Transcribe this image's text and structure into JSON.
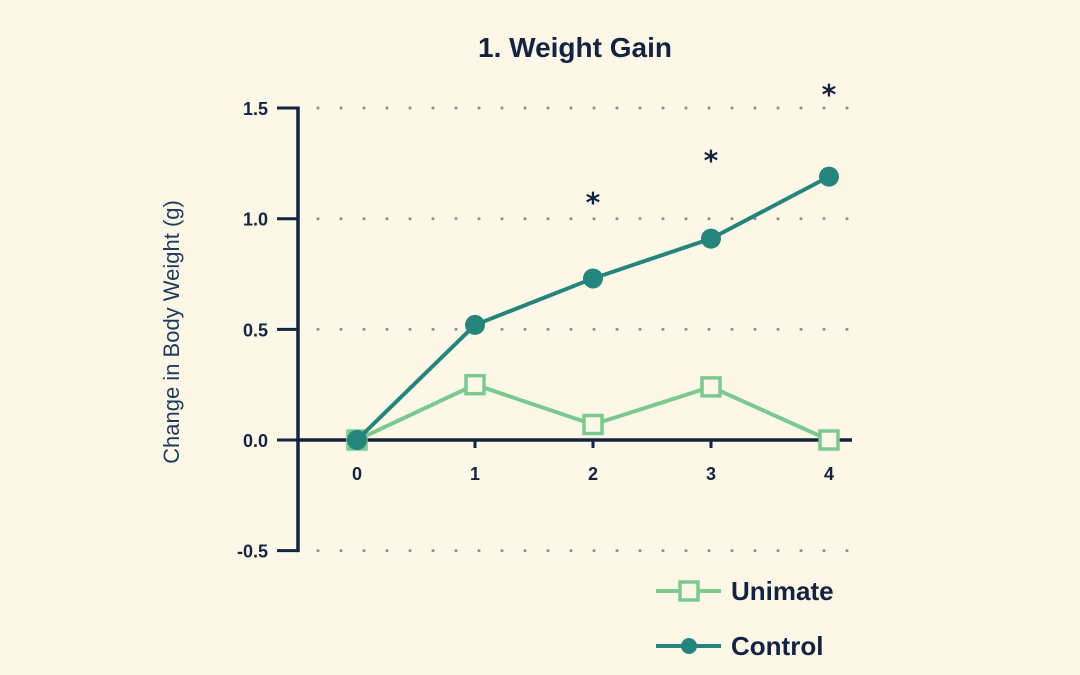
{
  "chart_data": {
    "type": "line",
    "title": "1. Weight Gain",
    "xlabel": "",
    "ylabel": "Change in Body Weight (g)",
    "x": [
      0,
      1,
      2,
      3,
      4
    ],
    "x_ticks": [
      "0",
      "1",
      "2",
      "3",
      "4"
    ],
    "y_ticks": [
      "1.5",
      "1.0",
      "0.5",
      "0.0",
      "-0.5"
    ],
    "ylim": [
      -0.5,
      1.5
    ],
    "grid": "horizontal dotted",
    "legend_position": "bottom-right",
    "series": [
      {
        "name": "Unimate",
        "marker": "open-square",
        "color": "#7cc98f",
        "values": [
          0.0,
          0.25,
          0.07,
          0.24,
          0.0
        ]
      },
      {
        "name": "Control",
        "marker": "filled-circle",
        "color": "#25857c",
        "values": [
          0.0,
          0.52,
          0.73,
          0.91,
          1.19
        ]
      }
    ],
    "annotations": [
      {
        "x": 2,
        "text": "*"
      },
      {
        "x": 3,
        "text": "*"
      },
      {
        "x": 4,
        "text": "*"
      }
    ]
  },
  "colors": {
    "background": "#fdf7e8",
    "axis": "#14233f",
    "unimate": "#7cc98f",
    "control": "#25857c",
    "grid": "#8a8f8c"
  },
  "legend": [
    {
      "label": "Unimate",
      "icon": "open-square-line-icon"
    },
    {
      "label": "Control",
      "icon": "filled-circle-line-icon"
    }
  ]
}
